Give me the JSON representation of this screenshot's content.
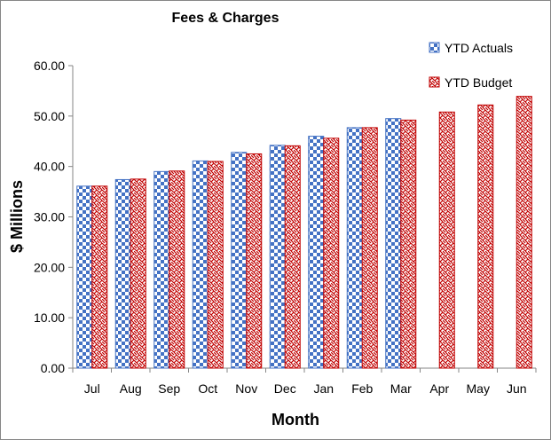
{
  "chart_data": {
    "type": "bar",
    "title": "Fees & Charges",
    "xlabel": "Month",
    "ylabel": "$ Millions",
    "ylim": [
      0,
      60
    ],
    "yticks": [
      "0.00",
      "10.00",
      "20.00",
      "30.00",
      "40.00",
      "50.00",
      "60.00"
    ],
    "ytick_values": [
      0,
      10,
      20,
      30,
      40,
      50,
      60
    ],
    "categories": [
      "Jul",
      "Aug",
      "Sep",
      "Oct",
      "Nov",
      "Dec",
      "Jan",
      "Feb",
      "Mar",
      "Apr",
      "May",
      "Jun"
    ],
    "series": [
      {
        "name": "YTD Actuals",
        "values": [
          36.1,
          37.4,
          39.0,
          41.1,
          42.8,
          44.2,
          46.0,
          47.7,
          49.5,
          null,
          null,
          null
        ],
        "color": "#4472C4",
        "pattern": "checkerboard"
      },
      {
        "name": "YTD Budget",
        "values": [
          36.1,
          37.5,
          39.1,
          41.0,
          42.5,
          44.1,
          45.6,
          47.7,
          49.2,
          50.8,
          52.2,
          53.9
        ],
        "color": "#C00000",
        "pattern": "weave"
      }
    ],
    "legend_position": "top-right",
    "grid": false
  }
}
